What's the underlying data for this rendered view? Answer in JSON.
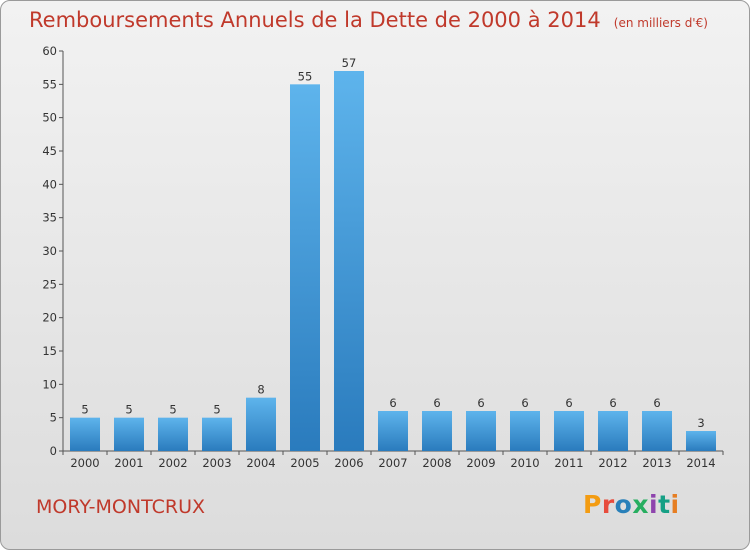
{
  "chart_data": {
    "type": "bar",
    "title": "Remboursements Annuels de la Dette de 2000 à 2014",
    "subtitle": "(en milliers d'€)",
    "categories": [
      "2000",
      "2001",
      "2002",
      "2003",
      "2004",
      "2005",
      "2006",
      "2007",
      "2008",
      "2009",
      "2010",
      "2011",
      "2012",
      "2013",
      "2014"
    ],
    "values": [
      5,
      5,
      5,
      5,
      8,
      55,
      57,
      6,
      6,
      6,
      6,
      6,
      6,
      6,
      3
    ],
    "ylim": [
      0,
      60
    ],
    "yticks": [
      0,
      5,
      10,
      15,
      20,
      25,
      30,
      35,
      40,
      45,
      50,
      55,
      60
    ],
    "grid": false,
    "bar_color": "#3a93d6",
    "title_color": "#c0392b"
  },
  "footer": {
    "town": "MORY-MONTCRUX",
    "logo": "Proxiti"
  },
  "logo_colors": [
    "#f39c12",
    "#e74c3c",
    "#2980b9",
    "#27ae60",
    "#8e44ad",
    "#16a085",
    "#e67e22"
  ]
}
